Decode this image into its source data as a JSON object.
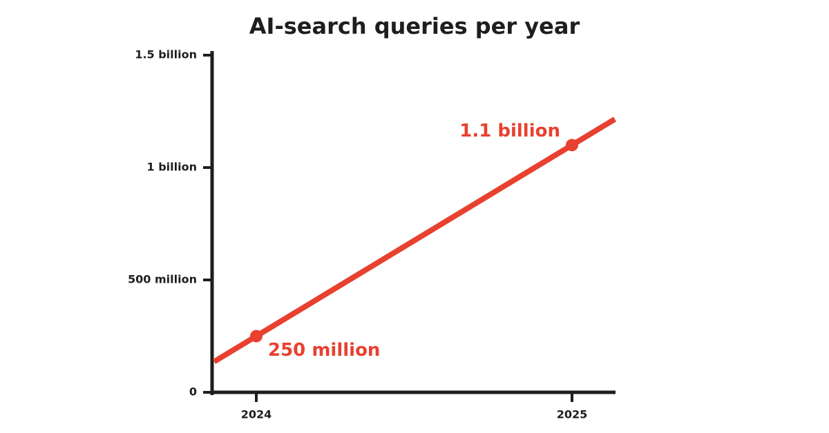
{
  "chart_data": {
    "type": "line",
    "title": "AI-search queries per year",
    "categories": [
      "2024",
      "2025"
    ],
    "values": [
      0.25,
      1.1
    ],
    "value_labels": [
      "250 million",
      "1.1 billion"
    ],
    "color": "#e8412f",
    "ylim": [
      0,
      1.5
    ],
    "yticks": [
      0,
      {
        "value": 0.5,
        "label": "500 million"
      },
      {
        "value": 1,
        "label": "1 billion"
      },
      {
        "value": 1.5,
        "label": "1.5 billion"
      }
    ]
  }
}
